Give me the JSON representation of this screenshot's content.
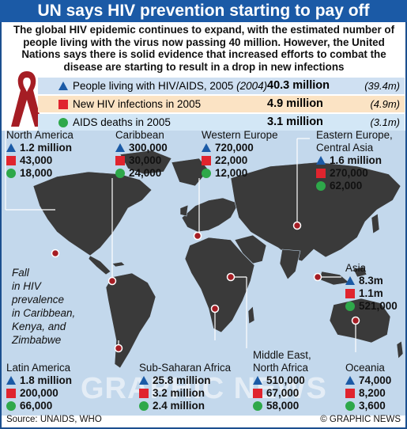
{
  "title": "UN says HIV prevention starting to pay off",
  "intro": "The global HIV epidemic continues to expand, with the estimated number of people living with the virus now passing 40 million. However, the United Nations says there is solid evidence that increased efforts to combat the disease are starting to result in a drop in new infections",
  "stats": [
    {
      "icon": "triangle",
      "label": "People living with HIV/AIDS, 2005",
      "label_year": "(2004)",
      "value": "40.3 million",
      "prev": "(39.4m)"
    },
    {
      "icon": "square",
      "label": "New HIV infections in 2005",
      "value": "4.9 million",
      "prev": "(4.9m)"
    },
    {
      "icon": "circle",
      "label": "AIDS deaths in 2005",
      "value": "3.1 million",
      "prev": "(3.1m)"
    }
  ],
  "regions": [
    {
      "name": "North America",
      "living": "1.2 million",
      "new": "43,000",
      "deaths": "18,000"
    },
    {
      "name": "Caribbean",
      "living": "300,000",
      "new": "30,000",
      "deaths": "24,000"
    },
    {
      "name": "Western Europe",
      "living": "720,000",
      "new": "22,000",
      "deaths": "12,000"
    },
    {
      "name": "Eastern Europe,",
      "name2": "Central Asia",
      "living": "1.6 million",
      "new": "270,000",
      "deaths": "62,000"
    },
    {
      "name": "Asia",
      "living": "8.3m",
      "new": "1.1m",
      "deaths": "521,000"
    },
    {
      "name": "Latin America",
      "living": "1.8 million",
      "new": "200,000",
      "deaths": "66,000"
    },
    {
      "name": "Sub-Saharan Africa",
      "living": "25.8 million",
      "new": "3.2 million",
      "deaths": "2.4 million"
    },
    {
      "name": "Middle East,",
      "name2": "North Africa",
      "living": "510,000",
      "new": "67,000",
      "deaths": "58,000"
    },
    {
      "name": "Oceania",
      "living": "74,000",
      "new": "8,200",
      "deaths": "3,600"
    }
  ],
  "note": [
    "Fall",
    "in HIV",
    "prevalence",
    "in Caribbean,",
    "Kenya, and",
    "Zimbabwe"
  ],
  "watermark": "GRAPHIC NEWS",
  "source": "Source: UNAIDS, WHO",
  "copyright": "© GRAPHIC NEWS",
  "colors": {
    "title_bg": "#1b5aa6",
    "living": "#1b5aa6",
    "new": "#e0242e",
    "deaths": "#2ea84a",
    "ocean": "#c3d8ec",
    "land": "#3a3a3a",
    "ribbon": "#a51d24"
  }
}
